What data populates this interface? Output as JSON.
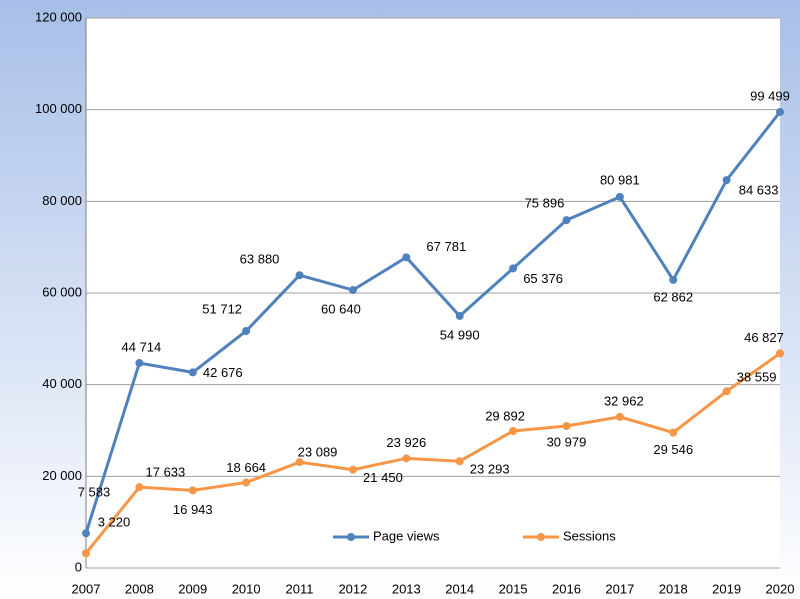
{
  "chart_data": {
    "type": "line",
    "categories": [
      "2007",
      "2008",
      "2009",
      "2010",
      "2011",
      "2012",
      "2013",
      "2014",
      "2015",
      "2016",
      "2017",
      "2018",
      "2019",
      "2020"
    ],
    "series": [
      {
        "name": "Page views",
        "color": "#4f81bd",
        "values": [
          7583,
          44714,
          42676,
          51712,
          63880,
          60640,
          67781,
          54990,
          65376,
          75896,
          80981,
          62862,
          84633,
          99499
        ],
        "value_labels": [
          "7 583",
          "44 714",
          "42 676",
          "51 712",
          "63 880",
          "60 640",
          "67 781",
          "54 990",
          "65 376",
          "75 896",
          "80 981",
          "62 862",
          "84 633",
          "99 499"
        ]
      },
      {
        "name": "Sessions",
        "color": "#f79646",
        "values": [
          3220,
          17633,
          16943,
          18664,
          23089,
          21450,
          23926,
          23293,
          29892,
          30979,
          32962,
          29546,
          38559,
          46827
        ],
        "value_labels": [
          "3 220",
          "17 633",
          "16 943",
          "18 664",
          "23 089",
          "21 450",
          "23 926",
          "23 293",
          "29 892",
          "30 979",
          "32 962",
          "29 546",
          "38 559",
          "46 827"
        ]
      }
    ],
    "ylim": [
      0,
      120000
    ],
    "yticks": [
      {
        "value": 0,
        "label": "0"
      },
      {
        "value": 20000,
        "label": "20 000"
      },
      {
        "value": 40000,
        "label": "40 000"
      },
      {
        "value": 60000,
        "label": "60 000"
      },
      {
        "value": 80000,
        "label": "80 000"
      },
      {
        "value": 100000,
        "label": "100 000"
      },
      {
        "value": 120000,
        "label": "120 000"
      }
    ],
    "grid": true,
    "legend": "bottom"
  }
}
